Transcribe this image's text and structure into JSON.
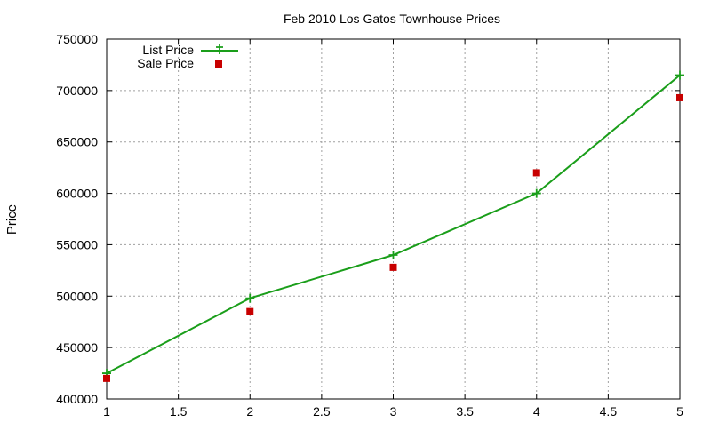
{
  "chart_data": {
    "type": "line",
    "title": "Feb 2010 Los Gatos Townhouse Prices",
    "xlabel": "",
    "ylabel": "Price",
    "xlim": [
      1,
      5
    ],
    "ylim": [
      400000,
      750000
    ],
    "x_ticks": [
      "1",
      "1.5",
      "2",
      "2.5",
      "3",
      "3.5",
      "4",
      "4.5",
      "5"
    ],
    "y_ticks": [
      "400000",
      "450000",
      "500000",
      "550000",
      "600000",
      "650000",
      "700000",
      "750000"
    ],
    "grid": true,
    "legend_position": "top-left",
    "series": [
      {
        "name": "List Price",
        "style": "linespoints",
        "marker": "plus",
        "color": "#1a9e1a",
        "x": [
          1,
          2,
          3,
          4,
          5
        ],
        "y": [
          425000,
          498000,
          540000,
          600000,
          715000
        ]
      },
      {
        "name": "Sale Price",
        "style": "points",
        "marker": "square",
        "color": "#c80000",
        "x": [
          1,
          2,
          3,
          4,
          5
        ],
        "y": [
          420000,
          485000,
          528000,
          620000,
          693000
        ]
      }
    ]
  }
}
